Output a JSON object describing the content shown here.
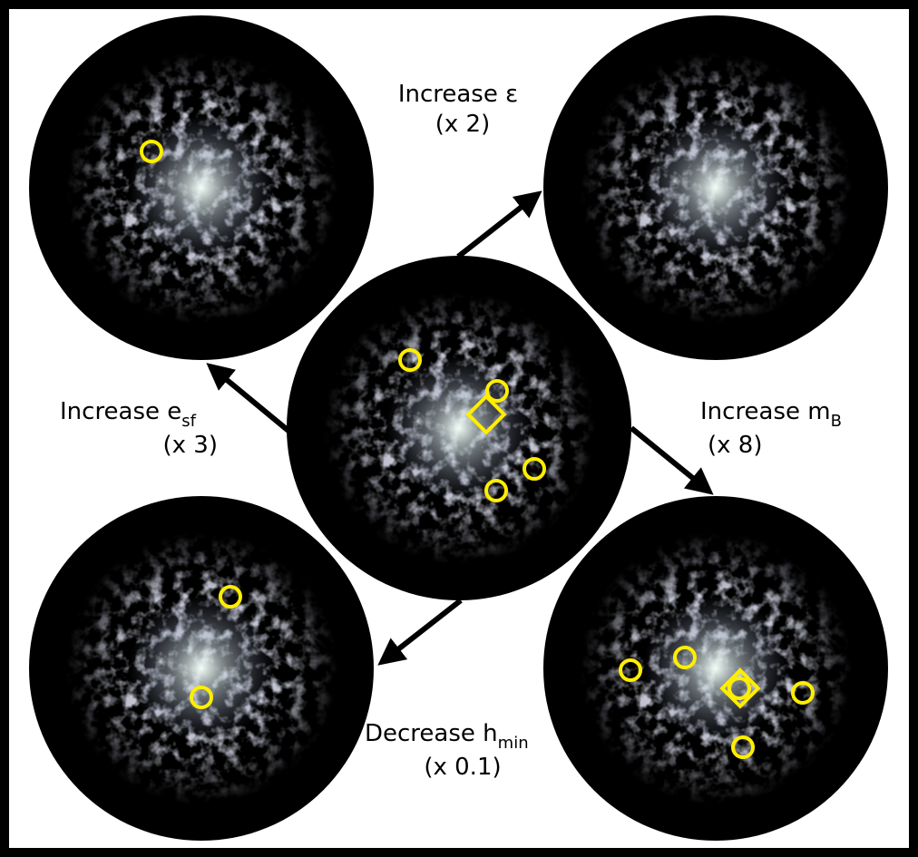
{
  "labels": [
    {
      "text": "Increase ε",
      "factor": "(x 2)"
    },
    {
      "text": "Increase e",
      "sub": "sf",
      "factor": "(x 3)"
    },
    {
      "text": "Increase m",
      "sub": "B",
      "factor": "(x 8)"
    },
    {
      "text": "Decrease h",
      "sub": "min",
      "factor": "(x 0.1)"
    }
  ]
}
